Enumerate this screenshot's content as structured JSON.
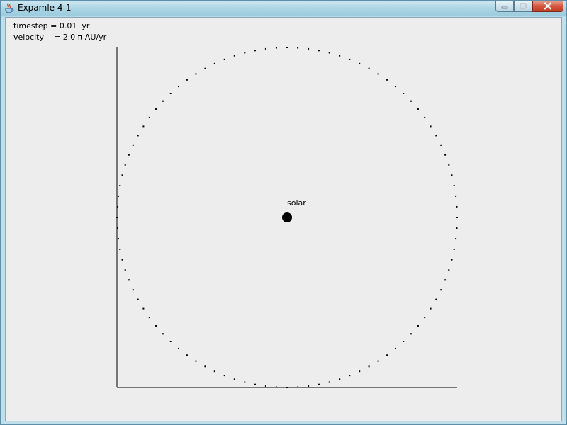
{
  "window": {
    "title": "Expamle 4-1",
    "icon": "java-icon",
    "controls": [
      "minimize-icon",
      "maximize-icon",
      "close-icon"
    ]
  },
  "info": {
    "timestep": "timestep = 0.01  yr",
    "velocity": "velocity    = 2.0 π AU/yr"
  },
  "chart_data": {
    "type": "scatter",
    "description_units": "AU",
    "xlim": [
      -1.0,
      1.0
    ],
    "ylim": [
      -1.0,
      1.0
    ],
    "grid": false,
    "axes": [
      "left",
      "bottom"
    ],
    "orbit": {
      "center": [
        0.0,
        0.0
      ],
      "radius": 1.0,
      "points": 100,
      "step_angle_fraction_of_turn": 0.01
    },
    "sun": {
      "label": "solar",
      "x": 0.0,
      "y": 0.0
    }
  }
}
